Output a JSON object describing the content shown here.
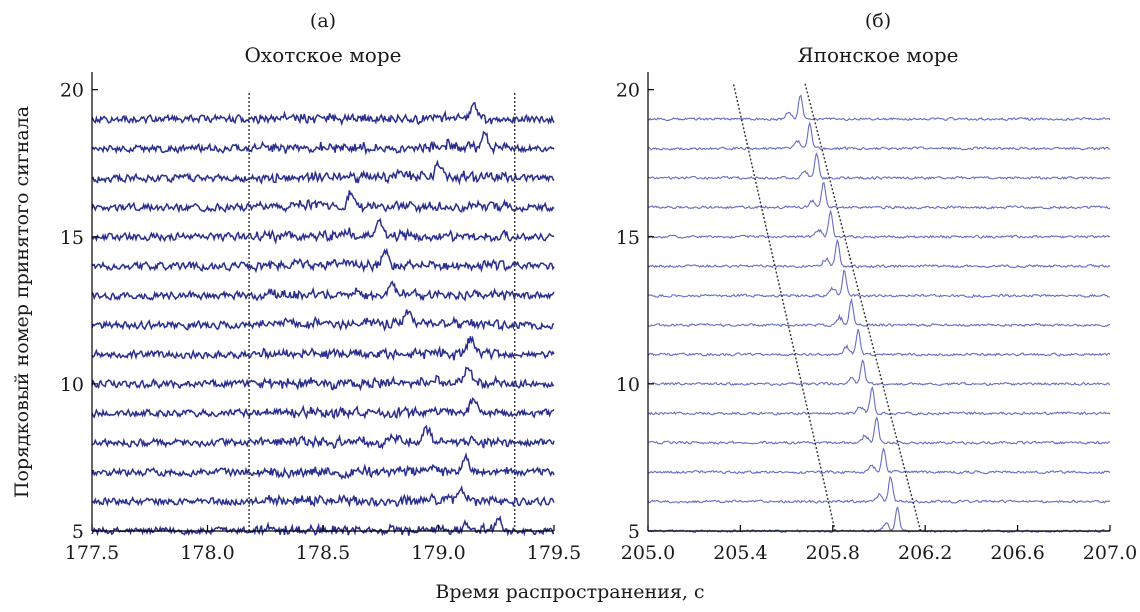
{
  "chart_data": [
    {
      "type": "line",
      "panel_letter": "(а)",
      "title": "Охотское море",
      "xlabel": "Время распространения, с",
      "ylabel": "Порядковый номер принятого сигнала",
      "xlim": [
        177.5,
        179.5
      ],
      "ylim": [
        5,
        20.6
      ],
      "xticks": [
        "177.5",
        "178.0",
        "178.5",
        "179.0",
        "179.5"
      ],
      "yticks": [
        "5",
        "10",
        "15",
        "20"
      ],
      "trace_color": "#2a2f8f",
      "trace_opacity": 1.0,
      "signal_indices": [
        5,
        6,
        7,
        8,
        9,
        10,
        11,
        12,
        13,
        14,
        15,
        16,
        17,
        18,
        19
      ],
      "window_guides": [
        {
          "x0": 178.18,
          "x1": 178.18
        },
        {
          "x0": 179.33,
          "x1": 179.33
        }
      ],
      "peak_time_by_signal": [
        179.26,
        179.1,
        179.12,
        178.95,
        179.15,
        179.13,
        179.14,
        178.87,
        178.8,
        178.77,
        178.75,
        178.62,
        179.0,
        179.2,
        179.15
      ],
      "noise_amplitude": 0.17,
      "peak_amplitude": 0.45,
      "grid": false
    },
    {
      "type": "line",
      "panel_letter": "(б)",
      "title": "Японское море",
      "xlabel": "Время распространения, с",
      "ylabel": "Порядковый номер принятого сигнала",
      "xlim": [
        205.0,
        207.0
      ],
      "ylim": [
        5,
        20.6
      ],
      "xticks": [
        "205.0",
        "205.4",
        "205.8",
        "206.2",
        "206.6",
        "207.0"
      ],
      "yticks": [
        "5",
        "10",
        "15",
        "20"
      ],
      "trace_color": "#3f49b5",
      "trace_opacity": 0.8,
      "signal_indices": [
        5,
        6,
        7,
        8,
        9,
        10,
        11,
        12,
        13,
        14,
        15,
        16,
        17,
        18,
        19
      ],
      "window_guides": [
        {
          "x0": 205.81,
          "x1": 205.37,
          "y0": 5,
          "y1": 20.2
        },
        {
          "x0": 206.18,
          "x1": 205.68,
          "y0": 5,
          "y1": 20.2
        }
      ],
      "peak_time_by_signal": [
        206.08,
        206.05,
        206.02,
        205.99,
        205.97,
        205.93,
        205.91,
        205.88,
        205.85,
        205.82,
        205.79,
        205.76,
        205.73,
        205.7,
        205.66
      ],
      "noise_amplitude": 0.06,
      "peak_amplitude": 0.85,
      "grid": false
    }
  ]
}
